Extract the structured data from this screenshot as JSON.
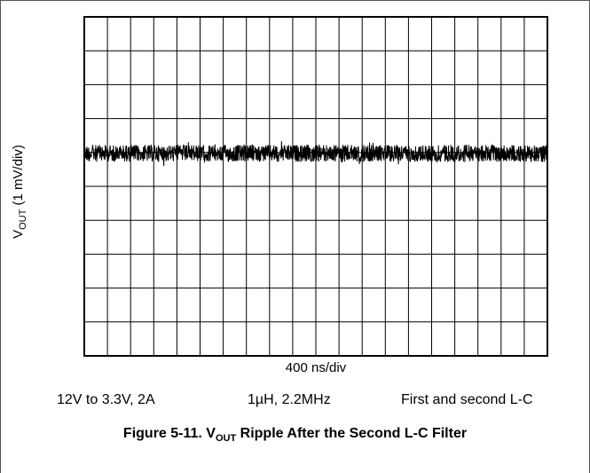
{
  "chart_data": {
    "type": "line",
    "ylabel": {
      "main": "V",
      "sub": "OUT",
      "rest": " (1 mV/div)"
    },
    "xlabel": "400 ns/div",
    "divisions": {
      "x": 20,
      "y": 10
    },
    "trace": {
      "baseline_div": 4.0,
      "ripple_pp_div": 0.5
    }
  },
  "conditions": [
    "12V to 3.3V, 2A",
    "1µH, 2.2MHz",
    "First and second L-C"
  ],
  "caption": {
    "prefix": "Figure 5-11. V",
    "sub": "OUT",
    "rest": " Ripple After the Second L-C Filter"
  }
}
